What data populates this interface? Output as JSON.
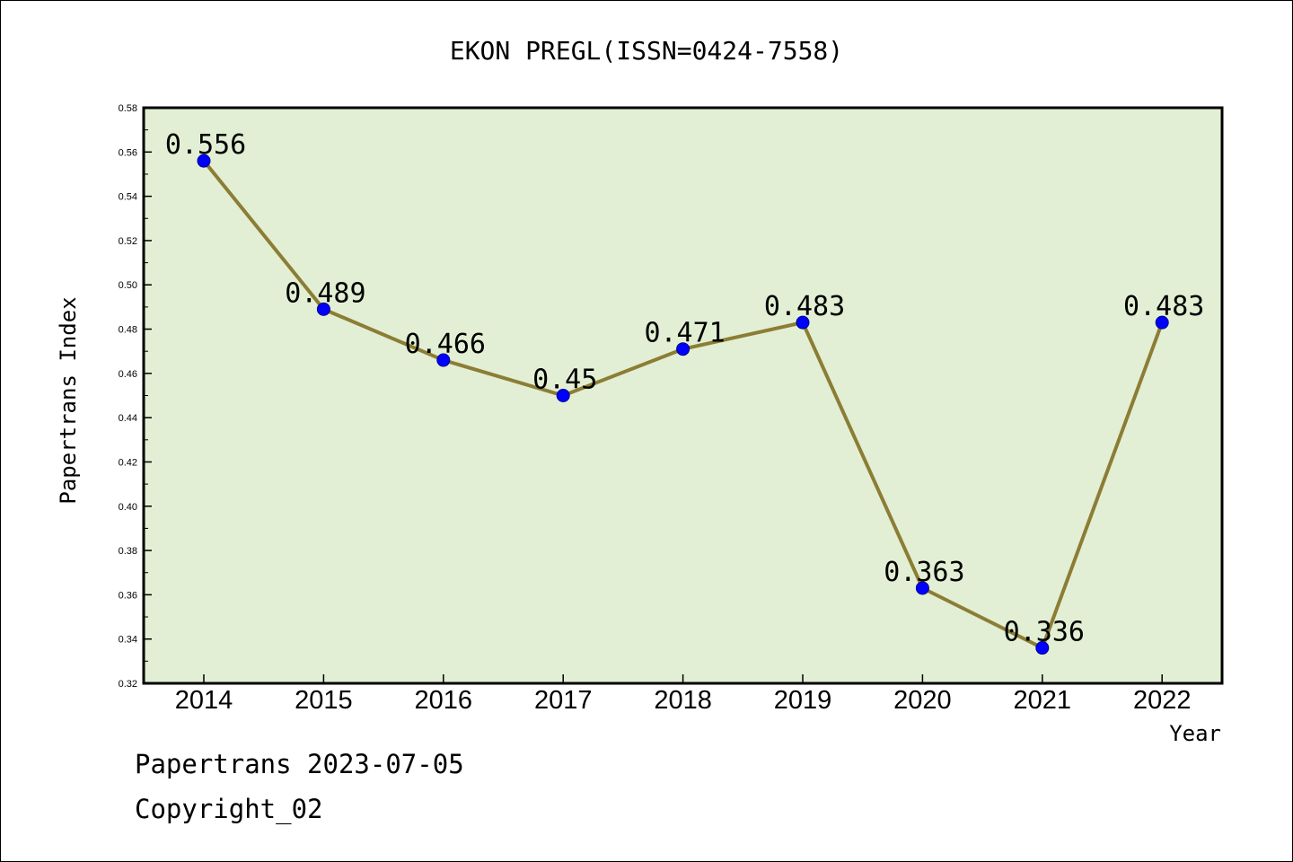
{
  "chart_data": {
    "type": "line",
    "title": "EKON PREGL(ISSN=0424-7558)",
    "xlabel": "Year",
    "ylabel": "Papertrans Index",
    "categories": [
      "2014",
      "2015",
      "2016",
      "2017",
      "2018",
      "2019",
      "2020",
      "2021",
      "2022"
    ],
    "values": [
      0.556,
      0.489,
      0.466,
      0.45,
      0.471,
      0.483,
      0.363,
      0.336,
      0.483
    ],
    "data_labels": [
      "0.556",
      "0.489",
      "0.466",
      "0.45",
      "0.471",
      "0.483",
      "0.363",
      "0.336",
      "0.483"
    ],
    "ylim": [
      0.32,
      0.58
    ],
    "yticks": [
      "0.32",
      "0.34",
      "0.36",
      "0.38",
      "0.40",
      "0.42",
      "0.44",
      "0.46",
      "0.48",
      "0.50",
      "0.52",
      "0.54",
      "0.56",
      "0.58"
    ],
    "grid": false,
    "colors": {
      "plot_background": "#e2efd4",
      "line": "#8c7d35",
      "marker": "#0000ff"
    }
  },
  "footer": {
    "date_line": "Papertrans 2023-07-05",
    "copyright": "Copyright_02"
  }
}
